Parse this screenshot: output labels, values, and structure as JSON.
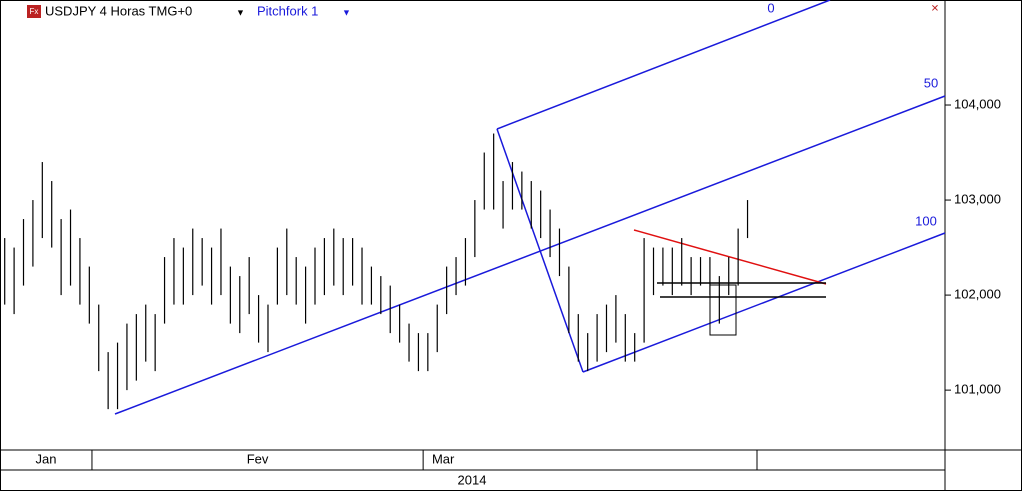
{
  "header": {
    "symbol": "USDJPY 4 Horas TMG+0",
    "indicator": "Pitchfork 1"
  },
  "chart_data": {
    "type": "range_bar",
    "high": [
      102.6,
      102.5,
      102.8,
      103.0,
      103.4,
      103.2,
      102.8,
      102.9,
      102.6,
      102.3,
      101.9,
      101.4,
      101.5,
      101.7,
      101.8,
      101.9,
      101.8,
      102.4,
      102.6,
      102.5,
      102.7,
      102.6,
      102.5,
      102.7,
      102.3,
      102.2,
      102.4,
      102.0,
      101.9,
      102.5,
      102.7,
      102.4,
      102.3,
      102.5,
      102.6,
      102.7,
      102.6,
      102.6,
      102.5,
      102.3,
      102.2,
      102.1,
      101.9,
      101.7,
      101.6,
      101.6,
      101.9,
      102.3,
      102.4,
      102.6,
      103.0,
      103.5,
      103.7,
      103.2,
      103.4,
      103.3,
      103.2,
      103.1,
      102.9,
      102.7,
      102.3,
      101.8,
      101.6,
      101.8,
      101.9,
      102.0,
      101.8,
      101.6,
      102.6,
      102.5,
      102.5,
      102.5,
      102.6,
      102.4,
      102.4,
      102.4,
      102.2,
      102.4,
      102.7,
      103.0
    ],
    "low": [
      101.9,
      101.8,
      102.1,
      102.3,
      102.6,
      102.5,
      102.0,
      102.1,
      101.9,
      101.7,
      101.2,
      100.8,
      100.8,
      101.0,
      101.1,
      101.3,
      101.2,
      101.7,
      101.9,
      101.9,
      102.0,
      102.1,
      101.9,
      102.0,
      101.7,
      101.6,
      101.8,
      101.5,
      101.4,
      101.9,
      102.0,
      101.9,
      101.7,
      101.9,
      102.0,
      102.1,
      102.0,
      102.1,
      101.9,
      101.9,
      101.8,
      101.6,
      101.5,
      101.3,
      101.2,
      101.2,
      101.4,
      101.8,
      102.0,
      102.1,
      102.4,
      102.9,
      102.9,
      102.7,
      102.9,
      102.9,
      102.7,
      102.6,
      102.4,
      102.2,
      101.6,
      101.3,
      101.2,
      101.3,
      101.4,
      101.5,
      101.3,
      101.3,
      101.5,
      102.0,
      102.1,
      102.0,
      102.1,
      102.0,
      102.1,
      102.0,
      101.7,
      102.0,
      102.1,
      102.6
    ],
    "xlim": [
      -0.5,
      100
    ],
    "xticks": [
      {
        "value": -0.5,
        "label": "Jan"
      },
      {
        "value": 9.28,
        "label": "Fev"
      },
      {
        "value": 44.5,
        "label": "Mar"
      }
    ],
    "year_label": "2014",
    "ylim": [
      100.37,
      105.105
    ],
    "yticks": [
      {
        "value": 101,
        "label": "101,000"
      },
      {
        "value": 102,
        "label": "102,000"
      },
      {
        "value": 103,
        "label": "103,000"
      },
      {
        "value": 104,
        "label": "104,000"
      }
    ],
    "color": "#000000",
    "pitchfork_labels": [
      "0",
      "50",
      "100"
    ]
  }
}
